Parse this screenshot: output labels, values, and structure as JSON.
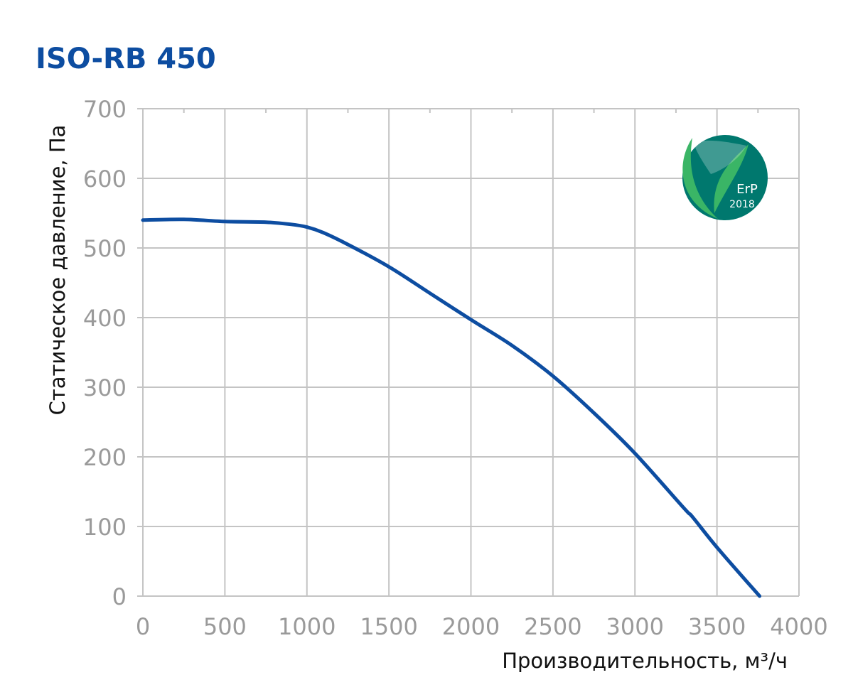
{
  "chart_data": {
    "type": "line",
    "title": "ISO-RB 450",
    "xlabel": "Производительность, м³/ч",
    "ylabel": "Статическое давление, Па",
    "xlim": [
      0,
      4000
    ],
    "ylim": [
      0,
      700
    ],
    "x_ticks": [
      0,
      500,
      1000,
      1500,
      2000,
      2500,
      3000,
      3500,
      4000
    ],
    "y_ticks": [
      0,
      100,
      200,
      300,
      400,
      500,
      600,
      700
    ],
    "grid": true,
    "colors": {
      "title": "#0d4da1",
      "curve": "#0d4da1",
      "grid": "#c4c4c4",
      "tick_label": "#9a9a9a",
      "axis_label": "#111111"
    },
    "series": [
      {
        "x": [
          0,
          250,
          500,
          750,
          900,
          1000,
          1100,
          1250,
          1500,
          1750,
          2000,
          2250,
          2500,
          2750,
          3000,
          3300,
          3350,
          3500,
          3760
        ],
        "y": [
          540,
          541,
          538,
          537,
          534,
          530,
          522,
          505,
          473,
          435,
          397,
          360,
          316,
          263,
          205,
          126,
          114,
          70,
          0
        ]
      }
    ],
    "badge": {
      "icon": "leaf-icon",
      "line1": "ErP",
      "line2": "2018",
      "colors": {
        "circle": "#00786e",
        "leaf": "#3ab566"
      }
    }
  }
}
